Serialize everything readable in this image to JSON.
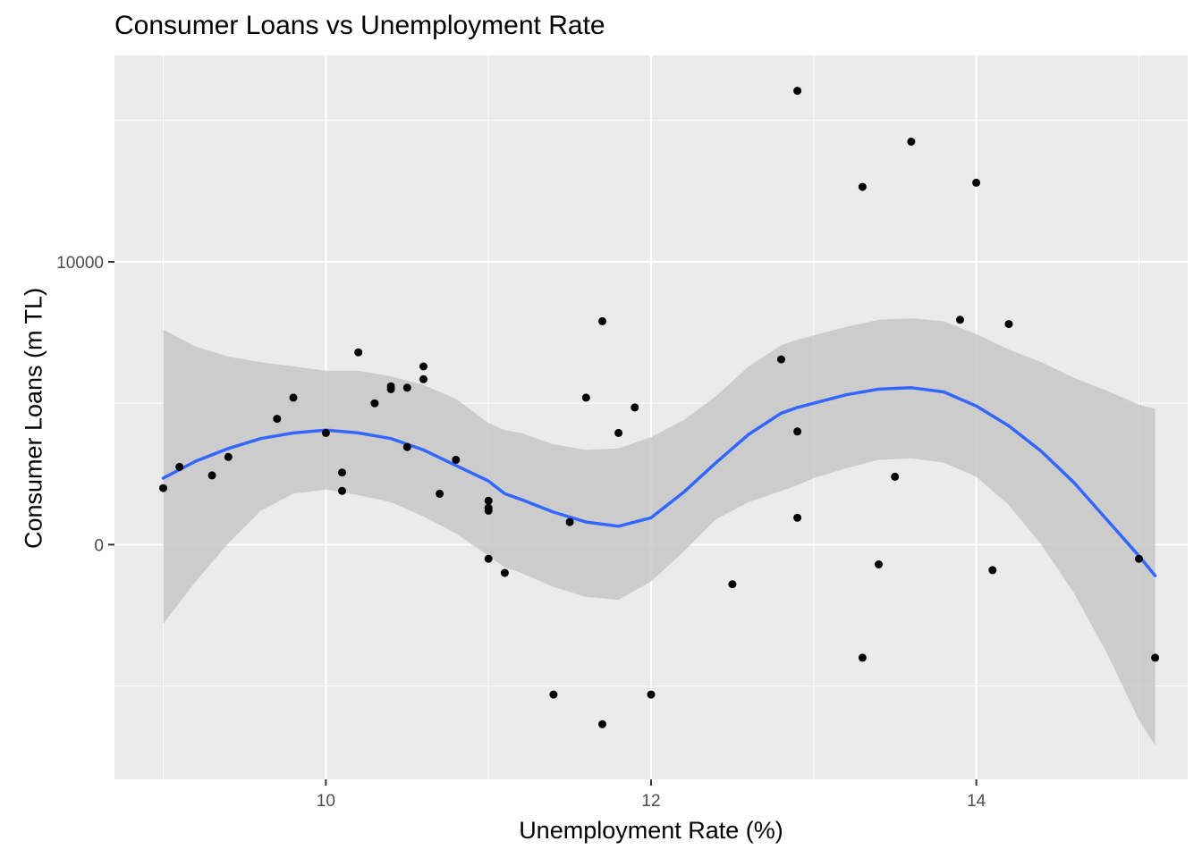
{
  "chart_data": {
    "type": "scatter",
    "title": "Consumer Loans vs Unemployment Rate",
    "xlabel": "Unemployment Rate (%)",
    "ylabel": "Consumer Loans (m TL)",
    "xlim": [
      8.7,
      15.3
    ],
    "ylim": [
      -8300,
      17300
    ],
    "x_major_ticks": [
      10,
      12,
      14
    ],
    "x_minor_ticks": [
      9,
      11,
      13,
      15
    ],
    "y_major_ticks": [
      0,
      10000
    ],
    "y_minor_ticks": [
      -5000,
      5000,
      15000
    ],
    "grid": true,
    "legend": "none",
    "colors": {
      "panel": "#ebebeb",
      "grid": "#ffffff",
      "points": "#000000",
      "smooth_line": "#3366ff",
      "ribbon": "#c4c4c4"
    },
    "points": [
      {
        "x": 9.0,
        "y": 2000
      },
      {
        "x": 9.1,
        "y": 2750
      },
      {
        "x": 9.3,
        "y": 2450
      },
      {
        "x": 9.4,
        "y": 3100
      },
      {
        "x": 9.7,
        "y": 4450
      },
      {
        "x": 9.8,
        "y": 5200
      },
      {
        "x": 10.0,
        "y": 3950
      },
      {
        "x": 10.1,
        "y": 2550
      },
      {
        "x": 10.1,
        "y": 1900
      },
      {
        "x": 10.2,
        "y": 6800
      },
      {
        "x": 10.3,
        "y": 5000
      },
      {
        "x": 10.4,
        "y": 5500
      },
      {
        "x": 10.4,
        "y": 5600
      },
      {
        "x": 10.5,
        "y": 5550
      },
      {
        "x": 10.5,
        "y": 3450
      },
      {
        "x": 10.6,
        "y": 6300
      },
      {
        "x": 10.6,
        "y": 5850
      },
      {
        "x": 10.7,
        "y": 1800
      },
      {
        "x": 10.8,
        "y": 3000
      },
      {
        "x": 11.0,
        "y": 1550
      },
      {
        "x": 11.0,
        "y": 1300
      },
      {
        "x": 11.0,
        "y": 1200
      },
      {
        "x": 11.0,
        "y": -500
      },
      {
        "x": 11.1,
        "y": -1000
      },
      {
        "x": 11.4,
        "y": -5300
      },
      {
        "x": 11.5,
        "y": 800
      },
      {
        "x": 11.6,
        "y": 5200
      },
      {
        "x": 11.7,
        "y": 7900
      },
      {
        "x": 11.7,
        "y": -6350
      },
      {
        "x": 11.8,
        "y": 3950
      },
      {
        "x": 11.9,
        "y": 4850
      },
      {
        "x": 12.0,
        "y": -5300
      },
      {
        "x": 12.5,
        "y": -1400
      },
      {
        "x": 12.8,
        "y": 6550
      },
      {
        "x": 12.9,
        "y": 16050
      },
      {
        "x": 12.9,
        "y": 4000
      },
      {
        "x": 12.9,
        "y": 950
      },
      {
        "x": 13.3,
        "y": 12650
      },
      {
        "x": 13.3,
        "y": -4000
      },
      {
        "x": 13.4,
        "y": -700
      },
      {
        "x": 13.5,
        "y": 2400
      },
      {
        "x": 13.6,
        "y": 14250
      },
      {
        "x": 13.9,
        "y": 7950
      },
      {
        "x": 14.0,
        "y": 12800
      },
      {
        "x": 14.1,
        "y": -900
      },
      {
        "x": 14.2,
        "y": 7800
      },
      {
        "x": 15.0,
        "y": -500
      },
      {
        "x": 15.1,
        "y": -4000
      }
    ],
    "smooth": {
      "x": [
        9.0,
        9.2,
        9.4,
        9.6,
        9.8,
        10.0,
        10.2,
        10.4,
        10.6,
        10.8,
        11.0,
        11.1,
        11.2,
        11.4,
        11.6,
        11.8,
        12.0,
        12.2,
        12.4,
        12.6,
        12.8,
        12.9,
        13.0,
        13.2,
        13.4,
        13.6,
        13.8,
        14.0,
        14.2,
        14.4,
        14.6,
        14.8,
        15.0,
        15.1
      ],
      "y": [
        2350,
        2950,
        3400,
        3750,
        3950,
        4050,
        3950,
        3750,
        3350,
        2800,
        2250,
        1800,
        1600,
        1150,
        800,
        650,
        950,
        1850,
        2900,
        3900,
        4650,
        4850,
        5000,
        5300,
        5500,
        5550,
        5400,
        4900,
        4200,
        3300,
        2200,
        900,
        -400,
        -1100
      ],
      "ymin": [
        -2800,
        -1300,
        50,
        1200,
        1800,
        1950,
        1750,
        1500,
        1000,
        400,
        -400,
        -800,
        -1000,
        -1500,
        -1850,
        -1950,
        -1300,
        -250,
        900,
        1500,
        1900,
        2100,
        2350,
        2700,
        3000,
        3050,
        2900,
        2400,
        1400,
        0,
        -1700,
        -3800,
        -6200,
        -7100
      ],
      "ymax": [
        7600,
        7000,
        6650,
        6450,
        6300,
        6150,
        6150,
        5950,
        5650,
        5150,
        4300,
        4050,
        3950,
        3550,
        3350,
        3400,
        3800,
        4400,
        5250,
        6300,
        7050,
        7250,
        7400,
        7700,
        7950,
        8000,
        7900,
        7450,
        6900,
        6450,
        5900,
        5450,
        4950,
        4800
      ]
    }
  }
}
